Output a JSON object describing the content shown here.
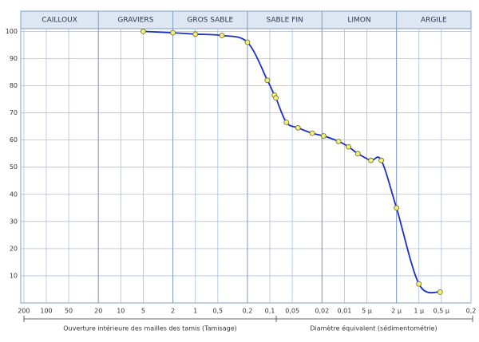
{
  "chart_data": {
    "type": "line",
    "zones": [
      "CAILLOUX",
      "GRAVIERS",
      "GROS SABLE",
      "SABLE FIN",
      "LIMON",
      "ARGILE"
    ],
    "zone_bounds": [
      20,
      2,
      0.2,
      0.02,
      0.002
    ],
    "xlabel_left": "Ouverture intérieure des mailles des tamis (Tamisage)",
    "xlabel_right": "Diamètre équivalent (sédimentométrie)",
    "log_x": true,
    "xlim": [
      220,
      0.0002
    ],
    "ylim": [
      0,
      101
    ],
    "xticks": [
      200,
      100,
      50,
      20,
      10,
      5,
      2,
      1,
      {
        "value": 0.5,
        "label": "0,5"
      },
      {
        "value": 0.2,
        "label": "0,2"
      },
      {
        "value": 0.1,
        "label": "0,1"
      },
      {
        "value": 0.05,
        "label": "0,05"
      },
      {
        "value": 0.02,
        "label": "0,02"
      },
      {
        "value": 0.01,
        "label": "0,01"
      },
      {
        "value": 0.005,
        "label": "5 µ"
      },
      {
        "value": 0.002,
        "label": "2 µ"
      },
      {
        "value": 0.001,
        "label": "1 µ"
      },
      {
        "value": 0.0005,
        "label": "0,5 µ"
      },
      {
        "value": 0.0002,
        "label": "0,2"
      }
    ],
    "yticks": [
      10,
      20,
      30,
      40,
      50,
      60,
      70,
      80,
      90,
      100
    ],
    "grid": true,
    "series": [
      {
        "color": "#1a2fc8",
        "marker_color": "#f2f07a",
        "x": [
          5,
          2,
          1,
          0.44,
          0.2,
          0.108,
          0.087,
          0.083,
          0.06,
          0.042,
          0.027,
          0.019,
          0.012,
          0.0088,
          0.0066,
          0.0044,
          0.0032,
          0.002,
          0.001,
          0.00052
        ],
        "values": [
          100,
          99.5,
          99,
          98.5,
          96,
          82,
          76.5,
          75.5,
          66.5,
          64.5,
          62.5,
          61.5,
          59.5,
          57.5,
          55,
          52.5,
          52.5,
          35,
          7,
          4
        ]
      }
    ]
  }
}
